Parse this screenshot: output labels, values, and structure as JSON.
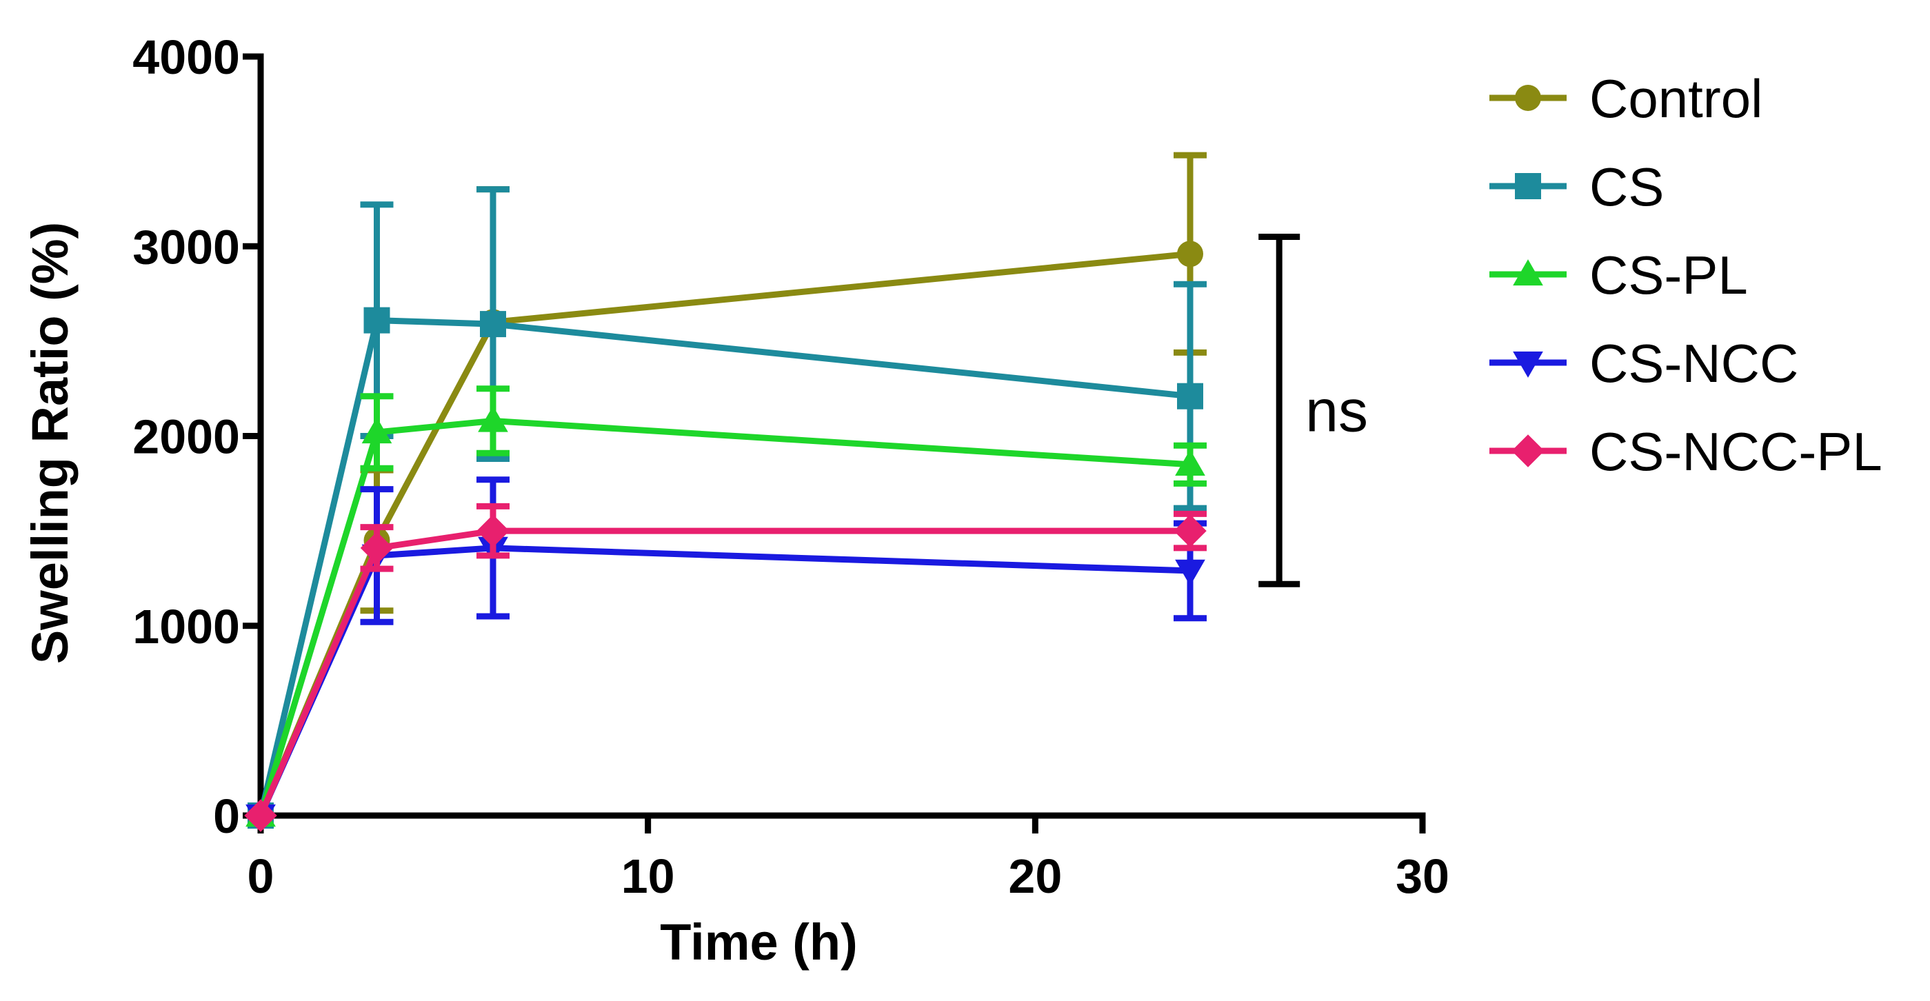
{
  "chart_data": {
    "type": "line",
    "title": "",
    "xlabel": "Time (h)",
    "ylabel": "Swelling Ratio (%)",
    "xlim": [
      0,
      30
    ],
    "ylim": [
      0,
      4000
    ],
    "xticks": [
      0,
      10,
      20,
      30
    ],
    "yticks": [
      0,
      1000,
      2000,
      3000,
      4000
    ],
    "x_tick_labels": [
      "0",
      "10",
      "20",
      "30"
    ],
    "y_tick_labels": [
      "0",
      "1000",
      "2000",
      "3000",
      "4000"
    ],
    "grid": false,
    "legend_position": "right",
    "x": [
      0,
      3,
      6,
      24
    ],
    "series": [
      {
        "name": "Control",
        "color": "#8a8a12",
        "marker": "circle",
        "values": [
          0,
          1450,
          2600,
          2960
        ],
        "errors": [
          0,
          370,
          700,
          520
        ]
      },
      {
        "name": "CS",
        "color": "#1d8b9c",
        "marker": "square",
        "values": [
          0,
          2610,
          2590,
          2210
        ],
        "errors": [
          0,
          610,
          710,
          590
        ]
      },
      {
        "name": "CS-PL",
        "color": "#1ed62a",
        "marker": "triangle-up",
        "values": [
          0,
          2020,
          2080,
          1850
        ],
        "errors": [
          0,
          190,
          170,
          100
        ]
      },
      {
        "name": "CS-NCC",
        "color": "#1a1ae0",
        "marker": "triangle-down",
        "values": [
          0,
          1370,
          1410,
          1290
        ],
        "errors": [
          0,
          350,
          360,
          250
        ]
      },
      {
        "name": "CS-NCC-PL",
        "color": "#e8206e",
        "marker": "diamond",
        "values": [
          0,
          1410,
          1500,
          1500
        ],
        "errors": [
          0,
          110,
          130,
          90
        ]
      }
    ],
    "annotations": [
      {
        "text": "ns",
        "bracket_y_range": [
          1220,
          3050
        ],
        "bracket_x": 26.3
      }
    ]
  }
}
